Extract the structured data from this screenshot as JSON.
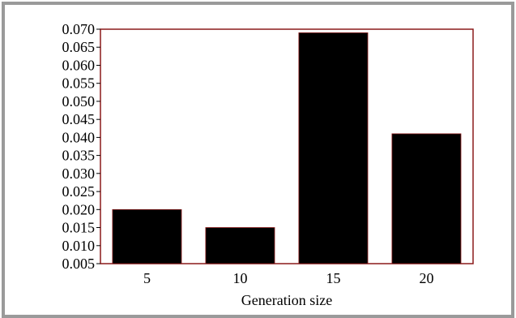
{
  "chart_data": {
    "type": "bar",
    "title": "",
    "xlabel": "Generation size",
    "ylabel": "",
    "categories": [
      "5",
      "10",
      "15",
      "20"
    ],
    "values": [
      0.02,
      0.015,
      0.069,
      0.041
    ],
    "ylim": [
      0.005,
      0.07
    ],
    "yticks": [
      "0.005",
      "0.010",
      "0.015",
      "0.020",
      "0.025",
      "0.030",
      "0.035",
      "0.040",
      "0.045",
      "0.050",
      "0.055",
      "0.060",
      "0.065",
      "0.070"
    ],
    "grid": false,
    "legend": "none",
    "colors": {
      "bar": "#000000",
      "plot_border": "#8b1a1a",
      "frame": "#9a9a9a"
    }
  }
}
